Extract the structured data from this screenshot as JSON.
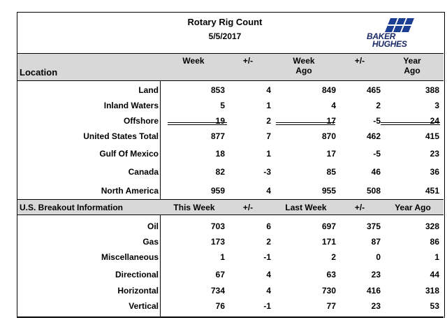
{
  "title": "Rotary Rig Count",
  "date": "5/5/2017",
  "logo": {
    "line1": "BAKER",
    "line2": "HUGHES"
  },
  "location_header": {
    "location": "Location",
    "week": "Week",
    "change1": "+/-",
    "week_ago": [
      "Week",
      "Ago"
    ],
    "change2": "+/-",
    "year_ago": [
      "Year",
      "Ago"
    ]
  },
  "location_rows": [
    {
      "label": "Land",
      "week": "853",
      "chg1": "4",
      "week_ago": "849",
      "chg2": "465",
      "year_ago": "388"
    },
    {
      "label": "Inland Waters",
      "week": "5",
      "chg1": "1",
      "week_ago": "4",
      "chg2": "2",
      "year_ago": "3"
    },
    {
      "label": "Offshore",
      "week": "19",
      "chg1": "2",
      "week_ago": "17",
      "chg2": "-5",
      "year_ago": "24"
    },
    {
      "label": "United States Total",
      "week": "877",
      "chg1": "7",
      "week_ago": "870",
      "chg2": "462",
      "year_ago": "415"
    },
    {
      "label": "Gulf Of Mexico",
      "week": "18",
      "chg1": "1",
      "week_ago": "17",
      "chg2": "-5",
      "year_ago": "23"
    },
    {
      "label": "Canada",
      "week": "82",
      "chg1": "-3",
      "week_ago": "85",
      "chg2": "46",
      "year_ago": "36"
    },
    {
      "label": "North America",
      "week": "959",
      "chg1": "4",
      "week_ago": "955",
      "chg2": "508",
      "year_ago": "451"
    }
  ],
  "breakout_header": {
    "label": "U.S. Breakout Information",
    "this_week": "This Week",
    "change1": "+/-",
    "last_week": "Last Week",
    "change2": "+/-",
    "year_ago": "Year Ago"
  },
  "breakout_rows": [
    {
      "label": "Oil",
      "week": "703",
      "chg1": "6",
      "week_ago": "697",
      "chg2": "375",
      "year_ago": "328"
    },
    {
      "label": "Gas",
      "week": "173",
      "chg1": "2",
      "week_ago": "171",
      "chg2": "87",
      "year_ago": "86"
    },
    {
      "label": "Miscellaneous",
      "week": "1",
      "chg1": "-1",
      "week_ago": "2",
      "chg2": "0",
      "year_ago": "1"
    },
    {
      "label": "Directional",
      "week": "67",
      "chg1": "4",
      "week_ago": "63",
      "chg2": "23",
      "year_ago": "44"
    },
    {
      "label": "Horizontal",
      "week": "734",
      "chg1": "4",
      "week_ago": "730",
      "chg2": "416",
      "year_ago": "318"
    },
    {
      "label": "Vertical",
      "week": "76",
      "chg1": "-1",
      "week_ago": "77",
      "chg2": "23",
      "year_ago": "53"
    }
  ]
}
